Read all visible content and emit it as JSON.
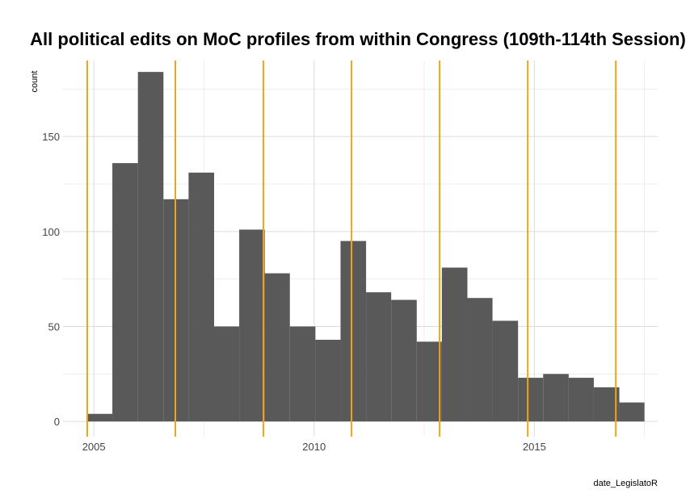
{
  "chart_data": {
    "type": "bar",
    "title": "All political edits on MoC profiles from within Congress (109th-114th Session)",
    "xlabel": "date_LegislatoR",
    "ylabel": "count",
    "xlim": [
      2004.3,
      2017.8
    ],
    "ylim": [
      -8,
      190
    ],
    "x_ticks": [
      2005,
      2010,
      2015
    ],
    "x_tick_labels": [
      "2005",
      "2010",
      "2015"
    ],
    "y_ticks": [
      0,
      50,
      100,
      150
    ],
    "y_tick_labels": [
      "0",
      "50",
      "100",
      "150"
    ],
    "grid": true,
    "legend": "none",
    "bins": [
      {
        "x0": 2004.85,
        "x1": 2005.42,
        "count": 4
      },
      {
        "x0": 2005.42,
        "x1": 2006.0,
        "count": 136
      },
      {
        "x0": 2006.0,
        "x1": 2006.58,
        "count": 184
      },
      {
        "x0": 2006.58,
        "x1": 2007.15,
        "count": 117
      },
      {
        "x0": 2007.15,
        "x1": 2007.73,
        "count": 131
      },
      {
        "x0": 2007.73,
        "x1": 2008.3,
        "count": 50
      },
      {
        "x0": 2008.3,
        "x1": 2008.88,
        "count": 101
      },
      {
        "x0": 2008.88,
        "x1": 2009.45,
        "count": 78
      },
      {
        "x0": 2009.45,
        "x1": 2010.03,
        "count": 50
      },
      {
        "x0": 2010.03,
        "x1": 2010.6,
        "count": 43
      },
      {
        "x0": 2010.6,
        "x1": 2011.18,
        "count": 95
      },
      {
        "x0": 2011.18,
        "x1": 2011.75,
        "count": 68
      },
      {
        "x0": 2011.75,
        "x1": 2012.33,
        "count": 64
      },
      {
        "x0": 2012.33,
        "x1": 2012.9,
        "count": 42
      },
      {
        "x0": 2012.9,
        "x1": 2013.48,
        "count": 81
      },
      {
        "x0": 2013.48,
        "x1": 2014.05,
        "count": 65
      },
      {
        "x0": 2014.05,
        "x1": 2014.63,
        "count": 53
      },
      {
        "x0": 2014.63,
        "x1": 2015.2,
        "count": 23
      },
      {
        "x0": 2015.2,
        "x1": 2015.78,
        "count": 25
      },
      {
        "x0": 2015.78,
        "x1": 2016.35,
        "count": 23
      },
      {
        "x0": 2016.35,
        "x1": 2016.93,
        "count": 18
      },
      {
        "x0": 2016.93,
        "x1": 2017.5,
        "count": 10
      }
    ],
    "session_lines": [
      2004.85,
      2006.85,
      2008.85,
      2010.85,
      2012.85,
      2014.85,
      2016.85
    ],
    "bar_color": "#595959",
    "line_color": "#f4a317",
    "grid_color": "#dcdcdc"
  }
}
